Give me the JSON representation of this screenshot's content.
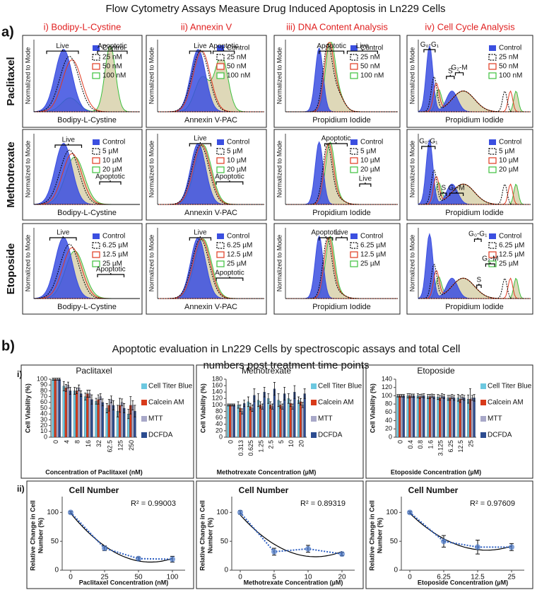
{
  "flow_cytometry": {
    "label": "a)",
    "title": "Flow Cytometry Assays Measure Drug Induced Apoptosis in Ln229 Cells",
    "columns": [
      "i) Bodipy-L-Cystine",
      "ii) Annexin V",
      "iii) DNA Content Analysis",
      "iv) Cell Cycle Analysis"
    ],
    "y_label": "Normalized to Mode",
    "legend_colors": [
      "#3b4fe0",
      "#000000",
      "#e03a20",
      "#3ec03e"
    ],
    "rows": [
      {
        "name": "Paclitaxel",
        "legend": [
          "Control",
          "25 nM",
          "50 nM",
          "100 nM"
        ],
        "panels": [
          {
            "x_label": "Bodipy-L-Cystine",
            "gates": [
              "Live",
              "Apoptotic"
            ]
          },
          {
            "x_label": "Annexin V-PAC",
            "gates": [
              "Live",
              "Apoptotic"
            ]
          },
          {
            "x_label": "Propidium Iodide",
            "gates": [
              "Apoptotic",
              "Live"
            ]
          },
          {
            "x_label": "Propidium Iodide",
            "gates": [
              "G₀-G₁",
              "S",
              "G₂-M"
            ]
          }
        ]
      },
      {
        "name": "Methotrexate",
        "legend": [
          "Control",
          "5 µM",
          "10 µM",
          "20 µM"
        ],
        "panels": [
          {
            "x_label": "Bodipy-L-Cystine",
            "gates": [
              "Live",
              "Apoptotic"
            ]
          },
          {
            "x_label": "Annexin V-PAC",
            "gates": [
              "Live",
              "Apoptotic"
            ]
          },
          {
            "x_label": "Propidium Iodide",
            "gates": [
              "Apoptotic",
              "Live"
            ]
          },
          {
            "x_label": "Propidium Iodide",
            "gates": [
              "G₀-G₁",
              "S",
              "G₂-M"
            ]
          }
        ]
      },
      {
        "name": "Etoposide",
        "legend": [
          "Control",
          "6.25 µM",
          "12.5 µM",
          "25 µM"
        ],
        "panels": [
          {
            "x_label": "Bodipy-L-Cystine",
            "gates": [
              "Live",
              "Apoptotic"
            ]
          },
          {
            "x_label": "Annexin V-PAC",
            "gates": [
              "Live",
              "Apoptotic"
            ]
          },
          {
            "x_label": "Propidium Iodide",
            "gates": [
              "Apoptotic",
              "Live"
            ]
          },
          {
            "x_label": "Propidium Iodide",
            "gates": [
              "G₀-G₁",
              "S",
              "G₂-M"
            ]
          }
        ]
      }
    ]
  },
  "spectroscopy": {
    "label": "b)",
    "title_lines": [
      "Apoptotic evaluation in Ln229 Cells by spectroscopic assays and total Cell",
      "numbers post treatment time points"
    ],
    "sub_labels": [
      "i)",
      "ii)"
    ]
  },
  "chart_data": [
    {
      "type": "bar",
      "title": "Paclitaxel",
      "y_label": "Cell Viability (%)",
      "x_label": "Concentration of Paclitaxel (nM)",
      "categories": [
        "0",
        "4",
        "8",
        "16",
        "32",
        "62.5",
        "125",
        "250"
      ],
      "ylim": [
        0,
        100
      ],
      "yticks": [
        0,
        10,
        20,
        30,
        40,
        50,
        60,
        70,
        80,
        90,
        100
      ],
      "series": [
        {
          "name": "Cell Titer Blue",
          "color": "#6cc8e0",
          "values": [
            100,
            88,
            80,
            70,
            62,
            50,
            45,
            40
          ],
          "errors": [
            2,
            8,
            6,
            6,
            5,
            8,
            10,
            8
          ]
        },
        {
          "name": "Calcein AM",
          "color": "#d83a1a",
          "values": [
            100,
            85,
            80,
            75,
            65,
            55,
            55,
            55
          ],
          "errors": [
            2,
            6,
            5,
            6,
            8,
            10,
            12,
            15
          ]
        },
        {
          "name": "MTT",
          "color": "#a8a8c8",
          "values": [
            100,
            90,
            85,
            75,
            70,
            65,
            60,
            55
          ],
          "errors": [
            2,
            5,
            5,
            6,
            5,
            6,
            6,
            8
          ]
        },
        {
          "name": "DCFDA",
          "color": "#2c4c90",
          "values": [
            100,
            80,
            75,
            65,
            60,
            55,
            50,
            45
          ],
          "errors": [
            2,
            6,
            5,
            8,
            6,
            8,
            8,
            10
          ]
        }
      ]
    },
    {
      "type": "bar",
      "title": "Methotrexate",
      "y_label": "Cell Viability (%)",
      "x_label": "Methotrexate Concentration (µM)",
      "categories": [
        "0",
        "0.313",
        "0.625",
        "1.25",
        "2.5",
        "5",
        "10",
        "20"
      ],
      "ylim": [
        0,
        180
      ],
      "yticks": [
        0,
        20,
        40,
        60,
        80,
        100,
        120,
        140,
        160,
        180
      ],
      "series": [
        {
          "name": "Cell Titer Blue",
          "color": "#6cc8e0",
          "values": [
            100,
            100,
            110,
            115,
            120,
            115,
            120,
            115
          ],
          "errors": [
            3,
            10,
            15,
            20,
            15,
            20,
            15,
            10
          ]
        },
        {
          "name": "Calcein AM",
          "color": "#d83a1a",
          "values": [
            100,
            90,
            95,
            100,
            100,
            100,
            105,
            110
          ],
          "errors": [
            3,
            10,
            10,
            10,
            10,
            10,
            10,
            10
          ]
        },
        {
          "name": "MTT",
          "color": "#a8a8c8",
          "values": [
            100,
            80,
            90,
            95,
            95,
            95,
            95,
            100
          ],
          "errors": [
            3,
            8,
            10,
            8,
            8,
            8,
            8,
            8
          ]
        },
        {
          "name": "DCFDA",
          "color": "#2c4c90",
          "values": [
            100,
            105,
            130,
            140,
            150,
            135,
            140,
            135
          ],
          "errors": [
            3,
            10,
            20,
            15,
            20,
            20,
            20,
            15
          ]
        }
      ]
    },
    {
      "type": "bar",
      "title": "Etoposide",
      "y_label": "Cell Viability (%)",
      "x_label": "Etoposide Concentration (µM)",
      "categories": [
        "0",
        "0.4",
        "0.8",
        "1.6",
        "3.125",
        "6.25",
        "12.5",
        "25"
      ],
      "ylim": [
        0,
        140
      ],
      "yticks": [
        0,
        20,
        40,
        60,
        80,
        100,
        120,
        140
      ],
      "series": [
        {
          "name": "Cell Titer Blue",
          "color": "#6cc8e0",
          "values": [
            100,
            100,
            100,
            98,
            97,
            95,
            95,
            92
          ],
          "errors": [
            3,
            5,
            5,
            5,
            6,
            6,
            8,
            10
          ]
        },
        {
          "name": "Calcein AM",
          "color": "#d83a1a",
          "values": [
            100,
            100,
            98,
            98,
            95,
            95,
            92,
            92
          ],
          "errors": [
            3,
            5,
            5,
            5,
            6,
            6,
            8,
            25
          ]
        },
        {
          "name": "MTT",
          "color": "#a8a8c8",
          "values": [
            100,
            100,
            100,
            100,
            100,
            98,
            97,
            95
          ],
          "errors": [
            3,
            4,
            4,
            4,
            5,
            5,
            6,
            6
          ]
        },
        {
          "name": "DCFDA",
          "color": "#2c4c90",
          "values": [
            100,
            100,
            100,
            98,
            98,
            95,
            95,
            95
          ],
          "errors": [
            3,
            4,
            5,
            5,
            5,
            6,
            6,
            8
          ]
        }
      ]
    },
    {
      "type": "line",
      "title": "Cell Number",
      "annotation": "R² = 0.99003",
      "y_label": [
        "Relative Change in Cell",
        "Number (%)"
      ],
      "x_label": "Paclitaxel Concentration (nM)",
      "categories": [
        "0",
        "25",
        "50",
        "100"
      ],
      "ylim": [
        0,
        120
      ],
      "yticks": [
        0,
        50,
        100
      ],
      "trendline": true,
      "series": [
        {
          "color": "#4a78c8",
          "values": [
            100,
            38,
            20,
            19
          ],
          "errors": [
            2,
            4,
            3,
            5
          ]
        }
      ]
    },
    {
      "type": "line",
      "title": "Cell Number",
      "annotation": "R² = 0.89319",
      "y_label": [
        "Relative Change in Cell",
        "Number (%)"
      ],
      "x_label": "Methotrexate Concentration (µM)",
      "categories": [
        "0",
        "5",
        "10",
        "20"
      ],
      "ylim": [
        0,
        120
      ],
      "yticks": [
        0,
        50,
        100
      ],
      "trendline": true,
      "series": [
        {
          "color": "#4a78c8",
          "values": [
            100,
            32,
            37,
            28
          ],
          "errors": [
            3,
            6,
            6,
            3
          ]
        }
      ]
    },
    {
      "type": "line",
      "title": "Cell Number",
      "annotation": "R² = 0.97609",
      "y_label": [
        "Relative Change in Cell",
        "Number (%)"
      ],
      "x_label": "Etoposide Concentration (µM)",
      "categories": [
        "0",
        "6.25",
        "12.5",
        "25"
      ],
      "ylim": [
        0,
        120
      ],
      "yticks": [
        0,
        50,
        100
      ],
      "trendline": true,
      "series": [
        {
          "color": "#4a78c8",
          "values": [
            100,
            50,
            40,
            40
          ],
          "errors": [
            2,
            10,
            12,
            6
          ]
        }
      ]
    }
  ]
}
